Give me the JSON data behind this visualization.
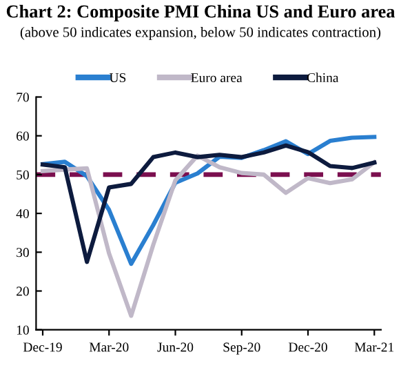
{
  "chart_data": {
    "type": "line",
    "title": "Chart 2: Composite PMI China US and Euro area",
    "subtitle": "(above 50 indicates expansion, below 50 indicates contraction)",
    "categories": [
      "Dec-19",
      null,
      null,
      "Mar-20",
      null,
      null,
      "Jun-20",
      null,
      null,
      "Sep-20",
      null,
      null,
      "Dec-20",
      null,
      null,
      "Mar-21"
    ],
    "series": [
      {
        "name": "US",
        "color": "#2a7fd0",
        "values": [
          52.7,
          53.3,
          49.6,
          40.9,
          27.0,
          37.0,
          47.9,
          50.3,
          54.6,
          54.3,
          56.3,
          58.6,
          55.3,
          58.7,
          59.5,
          59.7
        ]
      },
      {
        "name": "Euro area",
        "color": "#c0b8c8",
        "values": [
          50.9,
          51.3,
          51.6,
          29.7,
          13.6,
          31.9,
          48.5,
          54.9,
          51.9,
          50.4,
          50.0,
          45.3,
          49.1,
          47.8,
          48.8,
          53.2
        ]
      },
      {
        "name": "China",
        "color": "#0d1b3e",
        "values": [
          52.6,
          51.9,
          27.5,
          46.7,
          47.6,
          54.5,
          55.7,
          54.5,
          55.1,
          54.5,
          55.7,
          57.5,
          55.8,
          52.2,
          51.7,
          53.1
        ]
      }
    ],
    "ylim": [
      10,
      70
    ],
    "yticks": [
      10,
      20,
      30,
      40,
      50,
      60,
      70
    ],
    "ref_lines": [
      {
        "axis": "y",
        "value": 50,
        "color": "#7b0f4f",
        "line_style": "dashed"
      }
    ],
    "grid": false,
    "legend": "top",
    "marker": "none",
    "line_style": "solid"
  }
}
